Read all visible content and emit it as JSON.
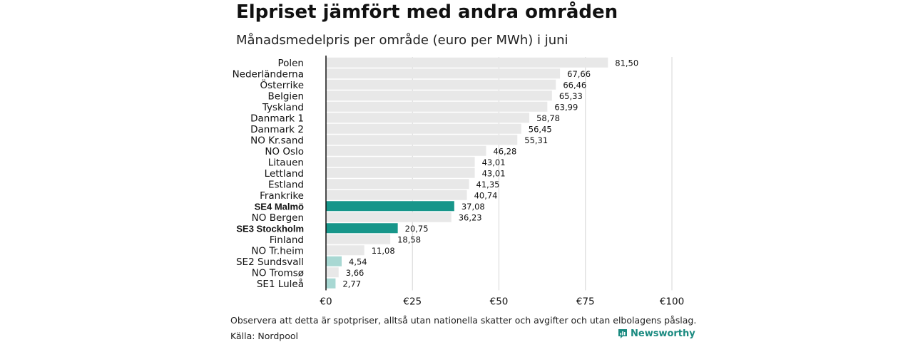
{
  "title": "Elpriset jämfört med andra områden",
  "subtitle": "Månadsmedelpris per område (euro per MWh) i juni",
  "note": "Observera att detta är spotpriser, alltså utan nationella skatter och avgifter och utan elbolagens påslag.",
  "source": "Källa: Nordpool",
  "brand": {
    "name": "Newsworthy",
    "icon": "newsworthy-logo-icon",
    "color": "#1a8a80"
  },
  "colors": {
    "default": "#e8e8e8",
    "highlight": "#17968a",
    "light": "#a8d8d3",
    "axis": "#111111",
    "grid": "#d6d6d6"
  },
  "chart_data": {
    "type": "bar",
    "orientation": "horizontal",
    "title": "Elpriset jämfört med andra områden",
    "subtitle": "Månadsmedelpris per område (euro per MWh) i juni",
    "xlim": [
      0,
      100
    ],
    "x_ticks": [
      0,
      25,
      50,
      75,
      100
    ],
    "x_tick_labels": [
      "€0",
      "€25",
      "€50",
      "€75",
      "€100"
    ],
    "grid": true,
    "categories": [
      "Polen",
      "Nederländerna",
      "Österrike",
      "Belgien",
      "Tyskland",
      "Danmark  1",
      "Danmark  2",
      "NO Kr.sand",
      "NO Oslo",
      "Litauen",
      "Lettland",
      "Estland",
      "Frankrike",
      "SE4 Malmö",
      "NO Bergen",
      "SE3 Stockholm",
      "Finland",
      "NO Tr.heim",
      "SE2  Sundsvall",
      "NO Tromsø",
      "SE1  Luleå"
    ],
    "values": [
      81.5,
      67.66,
      66.46,
      65.33,
      63.99,
      58.78,
      56.45,
      55.31,
      46.28,
      43.01,
      43.01,
      41.35,
      40.74,
      37.08,
      36.23,
      20.75,
      18.58,
      11.08,
      4.54,
      3.66,
      2.77
    ],
    "value_labels": [
      "81,50",
      "67,66",
      "66,46",
      "65,33",
      "63,99",
      "58,78",
      "56,45",
      "55,31",
      "46,28",
      "43,01",
      "43,01",
      "41,35",
      "40,74",
      "37,08",
      "36,23",
      "20,75",
      "18,58",
      "11,08",
      "4,54",
      "3,66",
      "2,77"
    ],
    "bar_styles": [
      "default",
      "default",
      "default",
      "default",
      "default",
      "default",
      "default",
      "default",
      "default",
      "default",
      "default",
      "default",
      "default",
      "highlight",
      "default",
      "highlight",
      "default",
      "default",
      "light",
      "default",
      "light"
    ],
    "bold_labels": [
      false,
      false,
      false,
      false,
      false,
      false,
      false,
      false,
      false,
      false,
      false,
      false,
      false,
      true,
      false,
      true,
      false,
      false,
      false,
      false,
      false
    ]
  }
}
